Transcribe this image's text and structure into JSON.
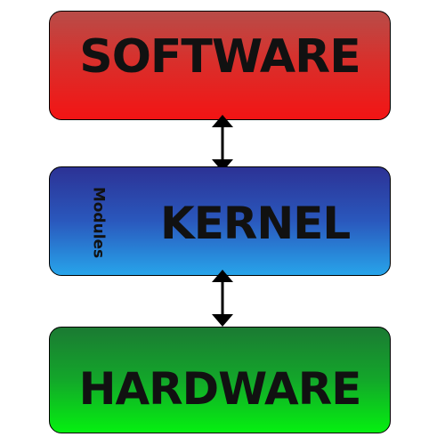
{
  "diagram": {
    "layers": {
      "software": "SOFTWARE",
      "kernel": "KERNEL",
      "kernel_side_label": "Modules",
      "hardware": "HARDWARE"
    },
    "colors": {
      "software_top": "#b84c48",
      "software_bottom": "#f31414",
      "kernel_top": "#2c3295",
      "kernel_bottom": "#27a4ea",
      "hardware_top": "#1b7a33",
      "hardware_bottom": "#05f010",
      "arrow": "#000000"
    },
    "connectors": [
      {
        "from": "SOFTWARE",
        "to": "KERNEL",
        "direction": "bidirectional"
      },
      {
        "from": "KERNEL",
        "to": "HARDWARE",
        "direction": "bidirectional"
      }
    ]
  }
}
